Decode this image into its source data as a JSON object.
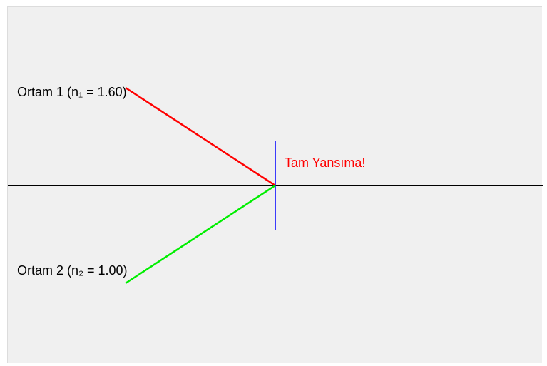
{
  "medium_1_label": "Ortam 1 (n₁ = 1.60)",
  "medium_2_label": "Ortam 2 (n₂ = 1.00)",
  "status_message": "Tam Yansıma!",
  "colors": {
    "background": "#f0f0f0",
    "interface": "#000000",
    "normal": "#0000ff",
    "incident_ray": "#ff0000",
    "second_ray": "#00ee00",
    "status_message": "#ff0000"
  }
}
